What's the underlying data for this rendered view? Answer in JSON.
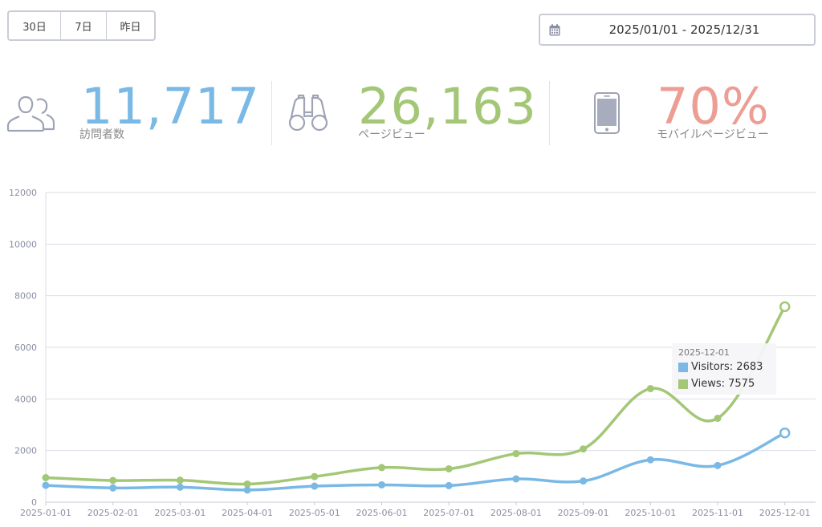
{
  "range_buttons": [
    "30日",
    "7日",
    "昨日"
  ],
  "date_range": "2025/01/01 - 2025/12/31",
  "stats": {
    "visitors": {
      "value": "11,717",
      "label": "訪問者数",
      "icon": "users-icon",
      "color": "#7ab8e5"
    },
    "pageviews": {
      "value": "26,163",
      "label": "ページビュー",
      "icon": "binoculars-icon",
      "color": "#a3c776"
    },
    "mobile": {
      "value": "70%",
      "label": "モバイルページビュー",
      "icon": "smartphone-icon",
      "color": "#ec9e94"
    }
  },
  "chart_data": {
    "type": "line",
    "categories": [
      "2025-01-01",
      "2025-02-01",
      "2025-03-01",
      "2025-04-01",
      "2025-05-01",
      "2025-06-01",
      "2025-07-01",
      "2025-08-01",
      "2025-09-01",
      "2025-10-01",
      "2025-11-01",
      "2025-12-01"
    ],
    "series": [
      {
        "name": "Visitors",
        "color": "#7ab8e5",
        "values": [
          650,
          550,
          580,
          470,
          620,
          670,
          640,
          900,
          820,
          1640,
          1420,
          2683
        ]
      },
      {
        "name": "Views",
        "color": "#a3c776",
        "values": [
          950,
          840,
          850,
          700,
          990,
          1340,
          1290,
          1880,
          2060,
          4400,
          3250,
          7575
        ]
      }
    ],
    "yticks": [
      0,
      2000,
      4000,
      6000,
      8000,
      10000,
      12000
    ],
    "ylim": [
      0,
      12000
    ],
    "grid": true,
    "legend": "none",
    "tooltip": {
      "date": "2025-12-01",
      "rows": [
        {
          "name": "Visitors",
          "value": "2683"
        },
        {
          "name": "Views",
          "value": "7575"
        }
      ]
    }
  }
}
